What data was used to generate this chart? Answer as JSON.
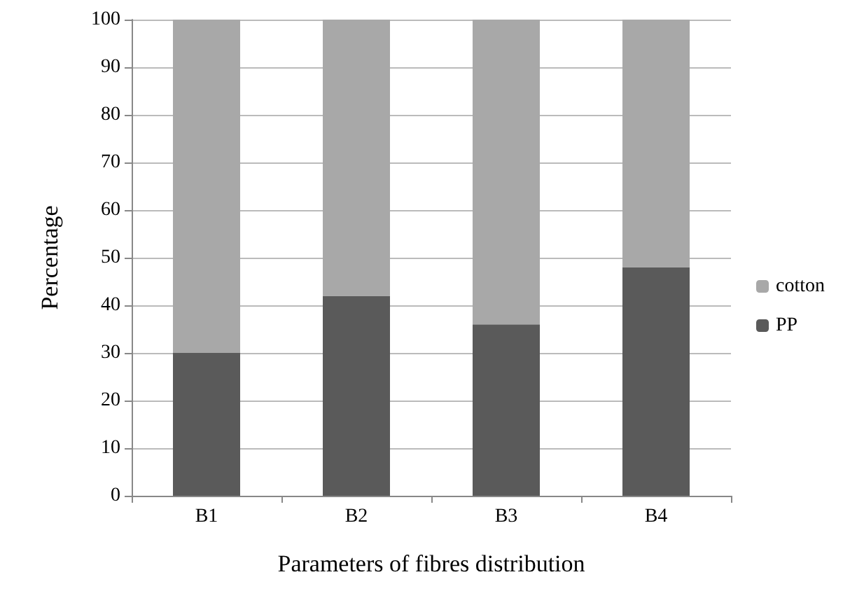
{
  "chart_data": {
    "type": "bar",
    "stacked": true,
    "xlabel": "Parameters of fibres distribution",
    "ylabel": "Percentage",
    "categories": [
      "B1",
      "B2",
      "B3",
      "B4"
    ],
    "series": [
      {
        "name": "PP",
        "color": "#5a5a5a",
        "values": [
          30,
          42,
          36,
          48
        ]
      },
      {
        "name": "cotton",
        "color": "#a8a8a8",
        "values": [
          70,
          58,
          64,
          52
        ]
      }
    ],
    "ylim": [
      0,
      100
    ],
    "yticks": [
      0,
      10,
      20,
      30,
      40,
      50,
      60,
      70,
      80,
      90,
      100
    ],
    "grid": "y",
    "legend": "right"
  }
}
